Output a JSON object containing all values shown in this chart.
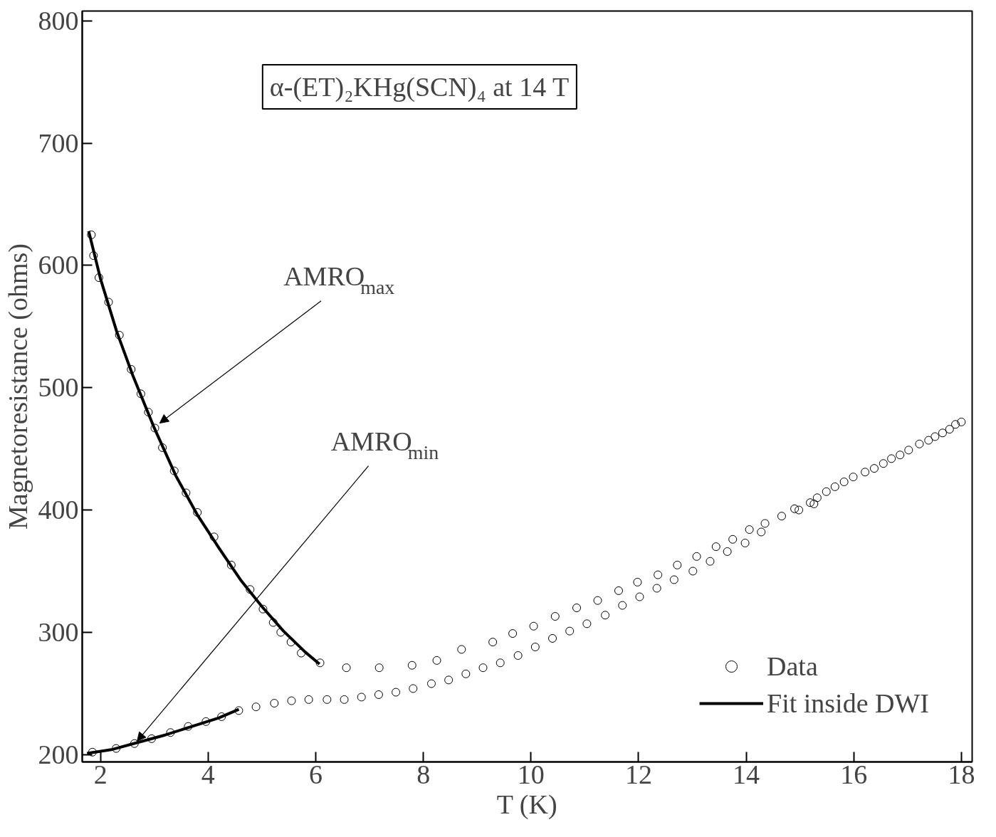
{
  "chart_data": {
    "type": "scatter",
    "title": "α-(ET)₂KHg(SCN)₄ at 14 T",
    "xlabel": "T (K)",
    "ylabel": "Magnetoresistance (ohms)",
    "xlim": [
      1.66,
      18.2
    ],
    "ylim": [
      194,
      808
    ],
    "xticks": [
      2,
      4,
      6,
      8,
      10,
      12,
      14,
      16,
      18
    ],
    "yticks": [
      200,
      300,
      400,
      500,
      600,
      700,
      800
    ],
    "grid": false,
    "legend": "bottom right",
    "series": [
      {
        "name": "Data",
        "marker": "circle",
        "color": "#000000",
        "x": [
          1.83,
          1.87,
          1.97,
          2.15,
          2.35,
          2.57,
          2.75,
          2.89,
          3.01,
          3.15,
          3.37,
          3.59,
          3.8,
          4.11,
          4.43,
          4.78,
          5.02,
          5.21,
          5.35,
          5.54,
          5.73,
          6.08,
          6.57,
          7.18,
          7.79,
          8.25,
          8.71,
          9.29,
          9.66,
          10.05,
          10.45,
          10.85,
          11.24,
          11.63,
          11.98,
          12.36,
          12.72,
          13.08,
          13.44,
          13.75,
          14.06,
          14.35,
          14.66,
          14.9,
          15.19,
          15.32,
          15.49,
          15.65,
          15.82,
          15.99,
          16.21,
          16.38,
          16.55,
          16.7,
          16.86,
          17.02,
          17.22,
          17.39,
          17.51,
          17.65,
          17.78,
          17.89,
          18.0,
          1.85,
          2.29,
          2.63,
          2.95,
          3.3,
          3.63,
          3.96,
          4.25,
          4.57,
          4.89,
          5.23,
          5.55,
          5.87,
          6.21,
          6.53,
          6.85,
          7.17,
          7.49,
          7.81,
          8.15,
          8.47,
          8.79,
          9.11,
          9.43,
          9.76,
          10.08,
          10.4,
          10.72,
          11.04,
          11.38,
          11.7,
          12.02,
          12.34,
          12.66,
          13.01,
          13.33,
          13.65,
          13.98,
          14.28,
          14.98,
          15.26
        ],
        "values": [
          625,
          608,
          590,
          570,
          543,
          515,
          495,
          480,
          467,
          451,
          432,
          414,
          398,
          378,
          355,
          335,
          319,
          308,
          300,
          292,
          283,
          275,
          271,
          271,
          273,
          277,
          286,
          292,
          299,
          305,
          313,
          320,
          326,
          334,
          341,
          347,
          355,
          362,
          370,
          376,
          384,
          389,
          395,
          401,
          406,
          410,
          415,
          419,
          423,
          427,
          431,
          434,
          438,
          442,
          445,
          449,
          454,
          457,
          460,
          463,
          466,
          470,
          472,
          202,
          205,
          209,
          213,
          218,
          223,
          227,
          231,
          236,
          239,
          242,
          244,
          245,
          245,
          245,
          247,
          249,
          251,
          254,
          258,
          261,
          266,
          271,
          275,
          281,
          288,
          295,
          301,
          307,
          314,
          322,
          329,
          336,
          343,
          350,
          358,
          366,
          373,
          382,
          400,
          405
        ]
      },
      {
        "name": "Fit inside DWI",
        "type": "line",
        "color": "#000000",
        "line_style": "solid",
        "x": [
          1.78,
          2.0,
          2.3,
          2.6,
          3.0,
          3.4,
          3.8,
          4.2,
          4.6,
          5.0,
          5.4,
          5.8,
          6.07
        ],
        "values": [
          628,
          589,
          546,
          510,
          467,
          428,
          396,
          369,
          343,
          321,
          301,
          284,
          274
        ]
      },
      {
        "type": "line",
        "color": "#000000",
        "line_style": "solid",
        "x": [
          1.75,
          2.2,
          2.7,
          3.2,
          3.7,
          4.2,
          4.57
        ],
        "values": [
          201,
          204,
          210,
          216,
          223,
          230,
          237
        ]
      }
    ],
    "annotations": [
      {
        "text": "AMRO$_{max}$",
        "x": 3.1,
        "y": 471
      },
      {
        "text": "AMRO$_{min}$",
        "x": 2.68,
        "y": 211
      }
    ]
  }
}
